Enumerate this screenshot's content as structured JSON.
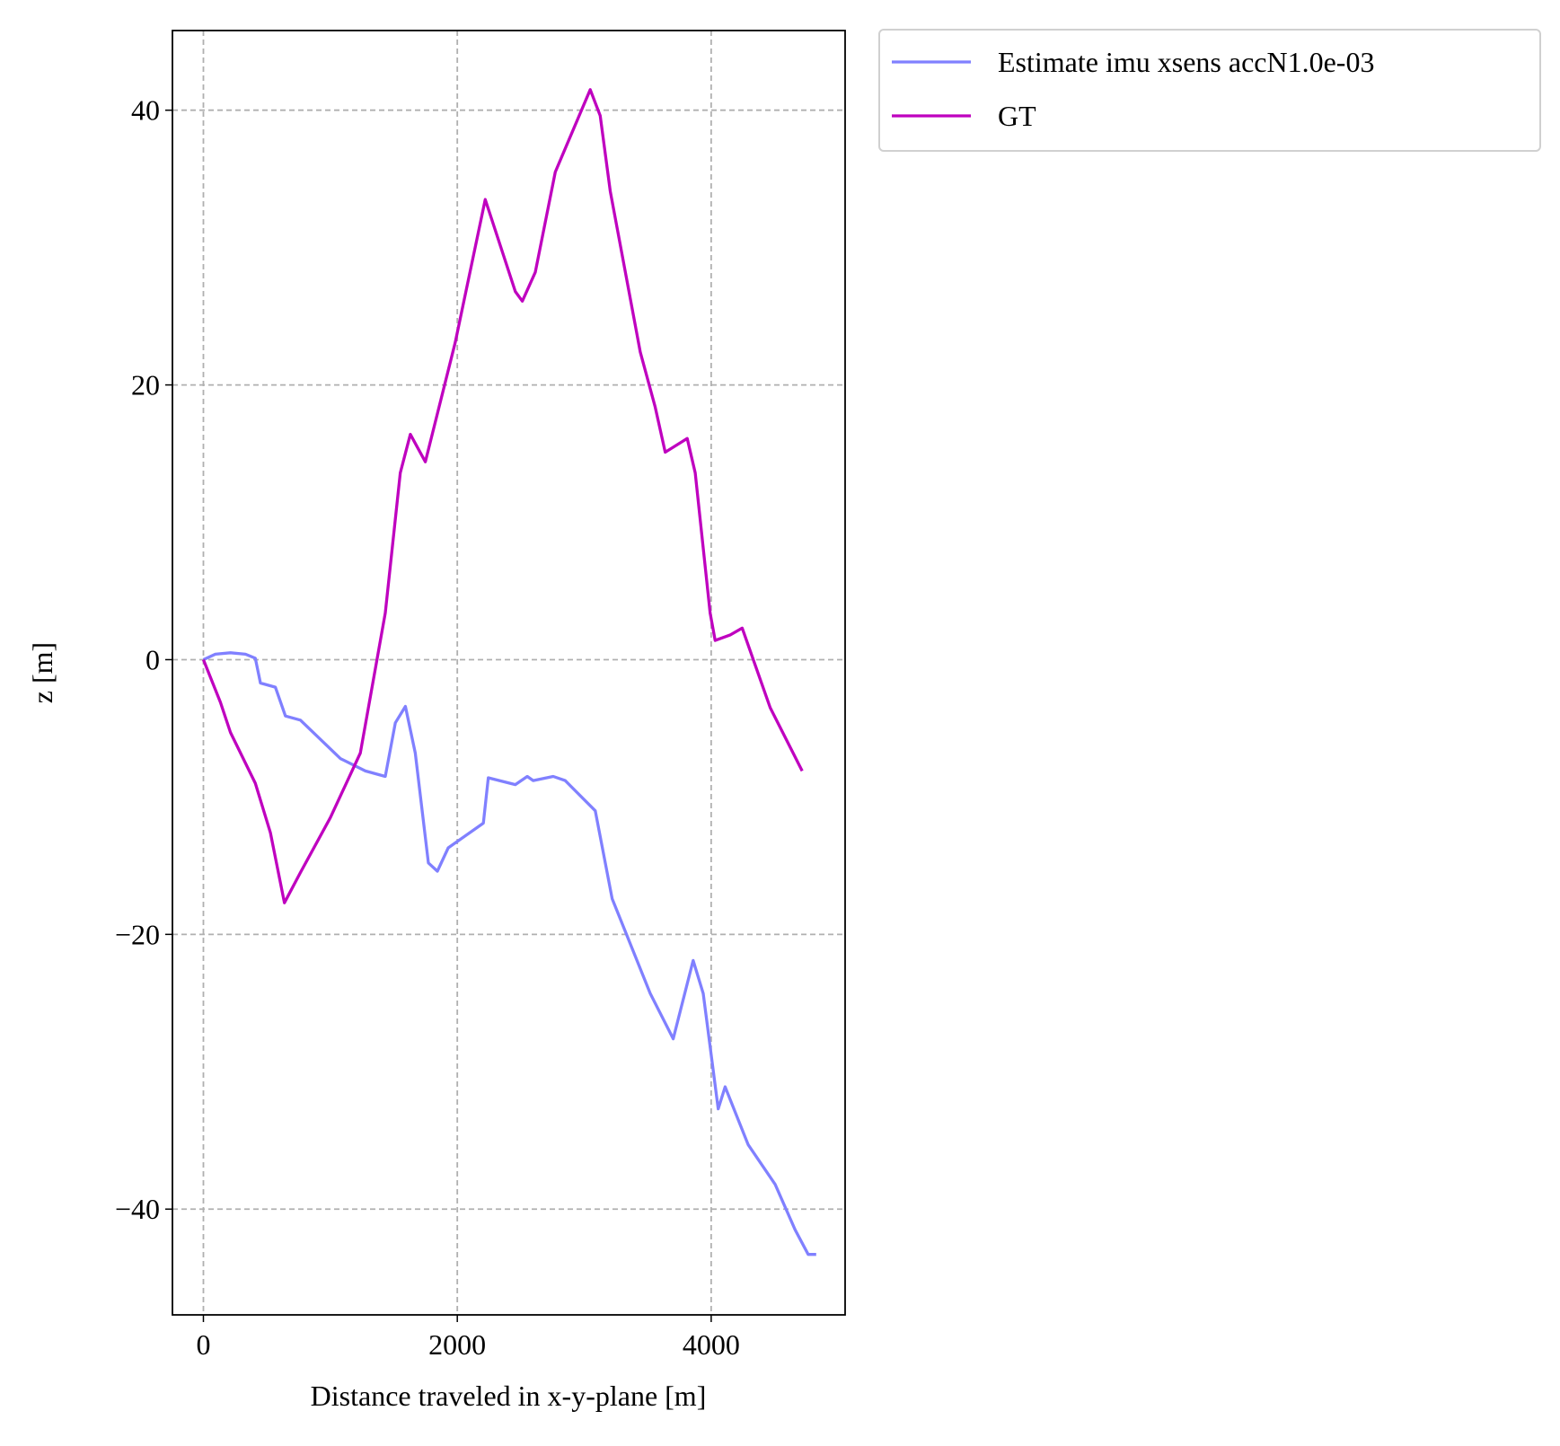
{
  "chart_data": {
    "type": "line",
    "xlabel": "Distance traveled in x-y-plane [m]",
    "ylabel": "z [m]",
    "xlim": [
      -244,
      5055
    ],
    "ylim": [
      -47.7,
      45.8
    ],
    "xticks": [
      0,
      2000,
      4000
    ],
    "yticks": [
      {
        "value": -40,
        "label": "−40"
      },
      {
        "value": -20,
        "label": "−20"
      },
      0,
      20,
      40
    ],
    "grid": true,
    "legend": "outside-upper-right",
    "series": [
      {
        "name": "Estimate imu xsens accN1.0e-03",
        "color": "#8080ff",
        "x": [
          0,
          94,
          213,
          331,
          409,
          449,
          567,
          646,
          764,
          1079,
          1276,
          1433,
          1512,
          1591,
          1669,
          1772,
          1843,
          1929,
          2205,
          2244,
          2457,
          2551,
          2598,
          2756,
          2850,
          3087,
          3220,
          3520,
          3701,
          3858,
          3937,
          4055,
          4110,
          4291,
          4504,
          4661,
          4764,
          4827
        ],
        "values": [
          0,
          0.4,
          0.5,
          0.4,
          0.1,
          -1.7,
          -2.0,
          -4.1,
          -4.4,
          -7.2,
          -8.1,
          -8.5,
          -4.6,
          -3.4,
          -6.8,
          -14.8,
          -15.4,
          -13.7,
          -11.9,
          -8.6,
          -9.1,
          -8.5,
          -8.8,
          -8.5,
          -8.8,
          -11.0,
          -17.4,
          -24.3,
          -27.6,
          -21.9,
          -24.3,
          -32.7,
          -31.1,
          -35.3,
          -38.2,
          -41.5,
          -43.3,
          -43.3
        ]
      },
      {
        "name": "GT",
        "color": "#bf00bf",
        "x": [
          0,
          134,
          213,
          409,
          528,
          638,
          764,
          1000,
          1236,
          1433,
          1551,
          1630,
          1748,
          1827,
          1984,
          2220,
          2457,
          2512,
          2614,
          2772,
          3047,
          3126,
          3205,
          3441,
          3559,
          3638,
          3811,
          3874,
          3992,
          4031,
          4150,
          4244,
          4465,
          4717
        ],
        "values": [
          0,
          -3.1,
          -5.3,
          -9.0,
          -12.6,
          -17.7,
          -15.5,
          -11.5,
          -6.8,
          3.4,
          13.6,
          16.4,
          14.4,
          17.3,
          23.1,
          33.5,
          26.8,
          26.1,
          28.2,
          35.5,
          41.5,
          39.6,
          34.1,
          22.4,
          18.4,
          15.1,
          16.1,
          13.6,
          3.4,
          1.4,
          1.8,
          2.3,
          -3.5,
          -8.1
        ]
      }
    ]
  }
}
